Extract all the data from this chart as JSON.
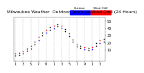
{
  "title": "Milwaukee Weather  Outdoor Temp vs Wind Chill (24 Hours)",
  "legend_label1": "Outdoor Temp",
  "legend_label2": "Wind Chill",
  "color_temp": "#ff0000",
  "color_chill": "#0000ff",
  "color_black": "#000000",
  "bg_color": "#ffffff",
  "plot_bg": "#ffffff",
  "hours": [
    1,
    2,
    3,
    4,
    5,
    6,
    7,
    8,
    9,
    10,
    11,
    12,
    13,
    14,
    15,
    16,
    17,
    18,
    19,
    20,
    21,
    22,
    23,
    24
  ],
  "x_ticks": [
    1,
    3,
    5,
    7,
    9,
    11,
    13,
    15,
    17,
    19,
    21,
    23
  ],
  "x_labels": [
    "1",
    "3",
    "5",
    "7",
    "9",
    "1",
    "3",
    "5",
    "7",
    "9",
    "1",
    "3"
  ],
  "ylim": [
    -5,
    55
  ],
  "y_ticks": [
    10,
    20,
    30,
    40,
    50
  ],
  "y_labels": [
    "10",
    "20",
    "30",
    "40",
    "50"
  ],
  "temp": [
    5,
    6,
    8,
    12,
    16,
    22,
    28,
    34,
    38,
    42,
    44,
    46,
    44,
    39,
    33,
    25,
    18,
    16,
    14,
    13,
    14,
    20,
    24,
    26
  ],
  "windchill": [
    3,
    4,
    5,
    9,
    12,
    18,
    24,
    30,
    34,
    38,
    40,
    43,
    41,
    36,
    29,
    22,
    15,
    13,
    11,
    10,
    11,
    16,
    20,
    22
  ],
  "grid_x_positions": [
    1,
    3,
    5,
    7,
    9,
    11,
    13,
    15,
    17,
    19,
    21,
    23
  ],
  "title_fontsize": 4.5,
  "tick_fontsize": 3.5,
  "marker_size": 1.5,
  "legend_bar_color1": "#0000ff",
  "legend_bar_color2": "#ff0000"
}
